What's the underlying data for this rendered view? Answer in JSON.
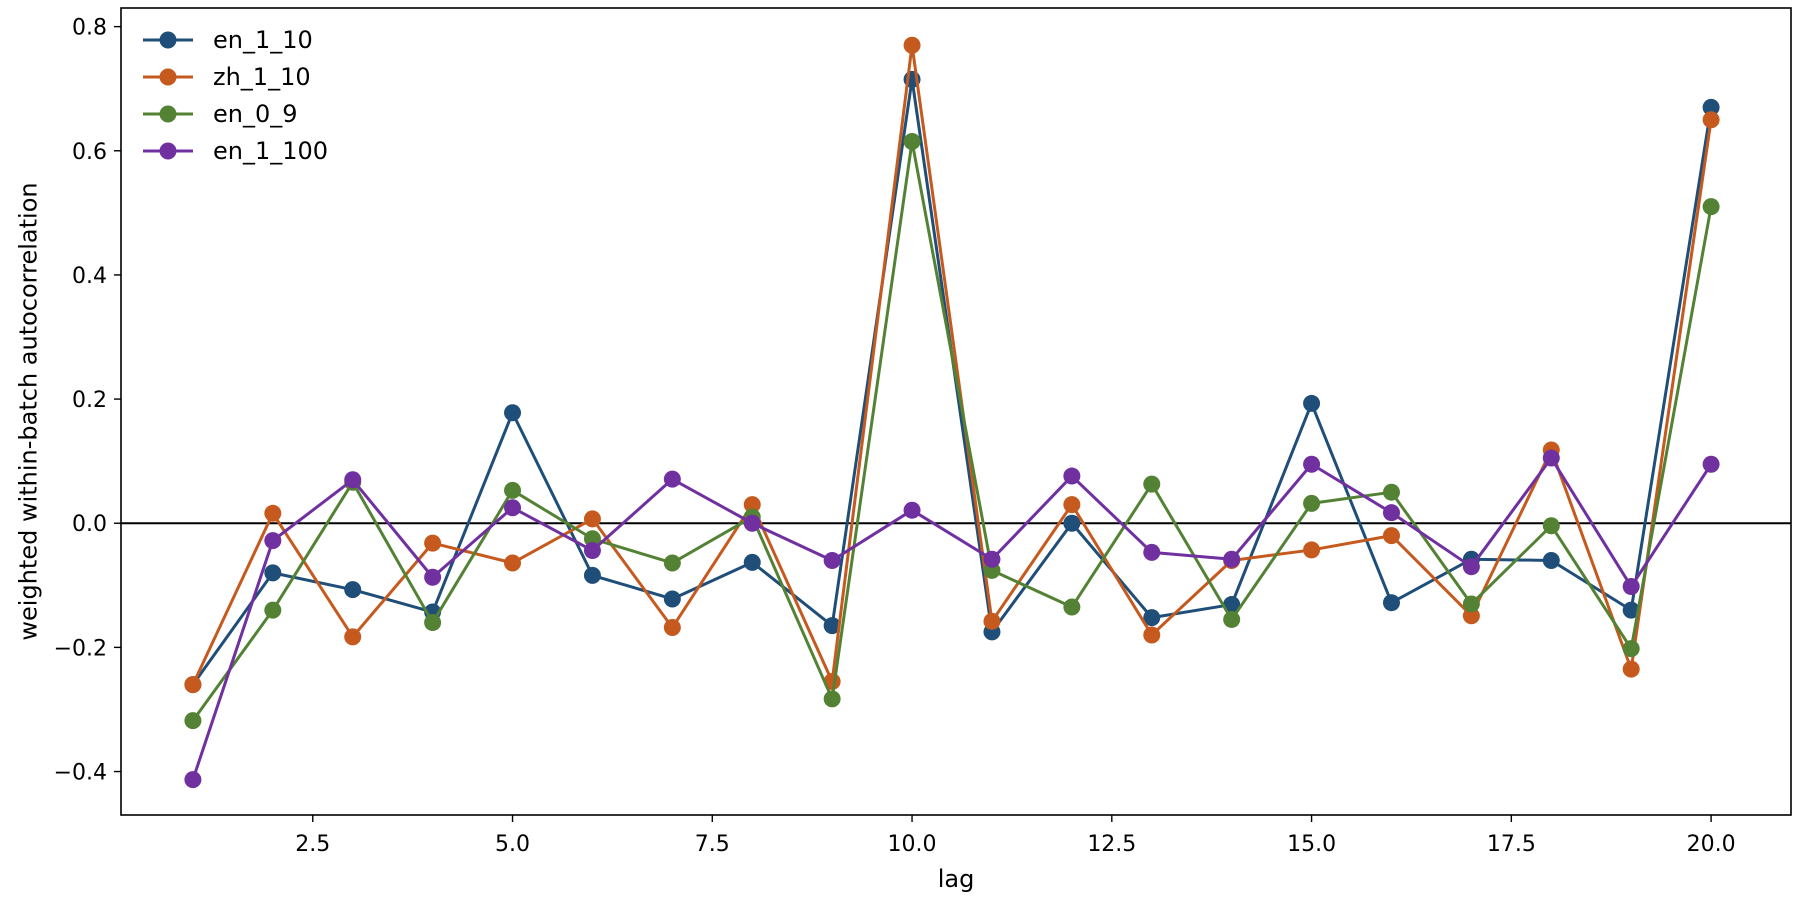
{
  "chart_data": {
    "type": "line",
    "title": "",
    "xlabel": "lag",
    "ylabel": "weighted within-batch autocorrelation",
    "xlim": [
      0.1,
      21.0
    ],
    "ylim": [
      -0.47,
      0.83
    ],
    "xticks": [
      2.5,
      5.0,
      7.5,
      10.0,
      12.5,
      15.0,
      17.5,
      20.0
    ],
    "xtick_labels": [
      "2.5",
      "5.0",
      "7.5",
      "10.0",
      "12.5",
      "15.0",
      "17.5",
      "20.0"
    ],
    "yticks": [
      -0.4,
      -0.2,
      0.0,
      0.2,
      0.4,
      0.6,
      0.8
    ],
    "ytick_labels": [
      "−0.4",
      "−0.2",
      "0.0",
      "0.2",
      "0.4",
      "0.6",
      "0.8"
    ],
    "grid": false,
    "reference_line_y": 0.0,
    "legend_position": "top-left",
    "x": [
      1,
      2,
      3,
      4,
      5,
      6,
      7,
      8,
      9,
      10,
      11,
      12,
      13,
      14,
      15,
      16,
      17,
      18,
      19,
      20
    ],
    "series": [
      {
        "name": "en_1_10",
        "color": "#1f4e79",
        "values": [
          -0.26,
          -0.08,
          -0.107,
          -0.143,
          0.178,
          -0.084,
          -0.122,
          -0.063,
          -0.165,
          0.715,
          -0.175,
          0.0,
          -0.152,
          -0.131,
          0.193,
          -0.128,
          -0.058,
          -0.06,
          -0.14,
          0.67
        ]
      },
      {
        "name": "zh_1_10",
        "color": "#c65a1e",
        "values": [
          -0.26,
          0.016,
          -0.183,
          -0.032,
          -0.064,
          0.007,
          -0.168,
          0.03,
          -0.255,
          0.77,
          -0.158,
          0.03,
          -0.18,
          -0.06,
          -0.043,
          -0.02,
          -0.149,
          0.118,
          -0.235,
          0.65
        ]
      },
      {
        "name": "en_0_9",
        "color": "#548235",
        "values": [
          -0.318,
          -0.14,
          0.066,
          -0.16,
          0.053,
          -0.025,
          -0.064,
          0.01,
          -0.283,
          0.615,
          -0.076,
          -0.135,
          0.063,
          -0.155,
          0.032,
          0.05,
          -0.13,
          -0.004,
          -0.202,
          0.51
        ]
      },
      {
        "name": "en_1_100",
        "color": "#7030a0",
        "values": [
          -0.413,
          -0.028,
          0.07,
          -0.087,
          0.025,
          -0.044,
          0.071,
          0.0,
          -0.06,
          0.021,
          -0.058,
          0.076,
          -0.047,
          -0.058,
          0.095,
          0.017,
          -0.07,
          0.105,
          -0.102,
          0.095
        ]
      }
    ]
  }
}
